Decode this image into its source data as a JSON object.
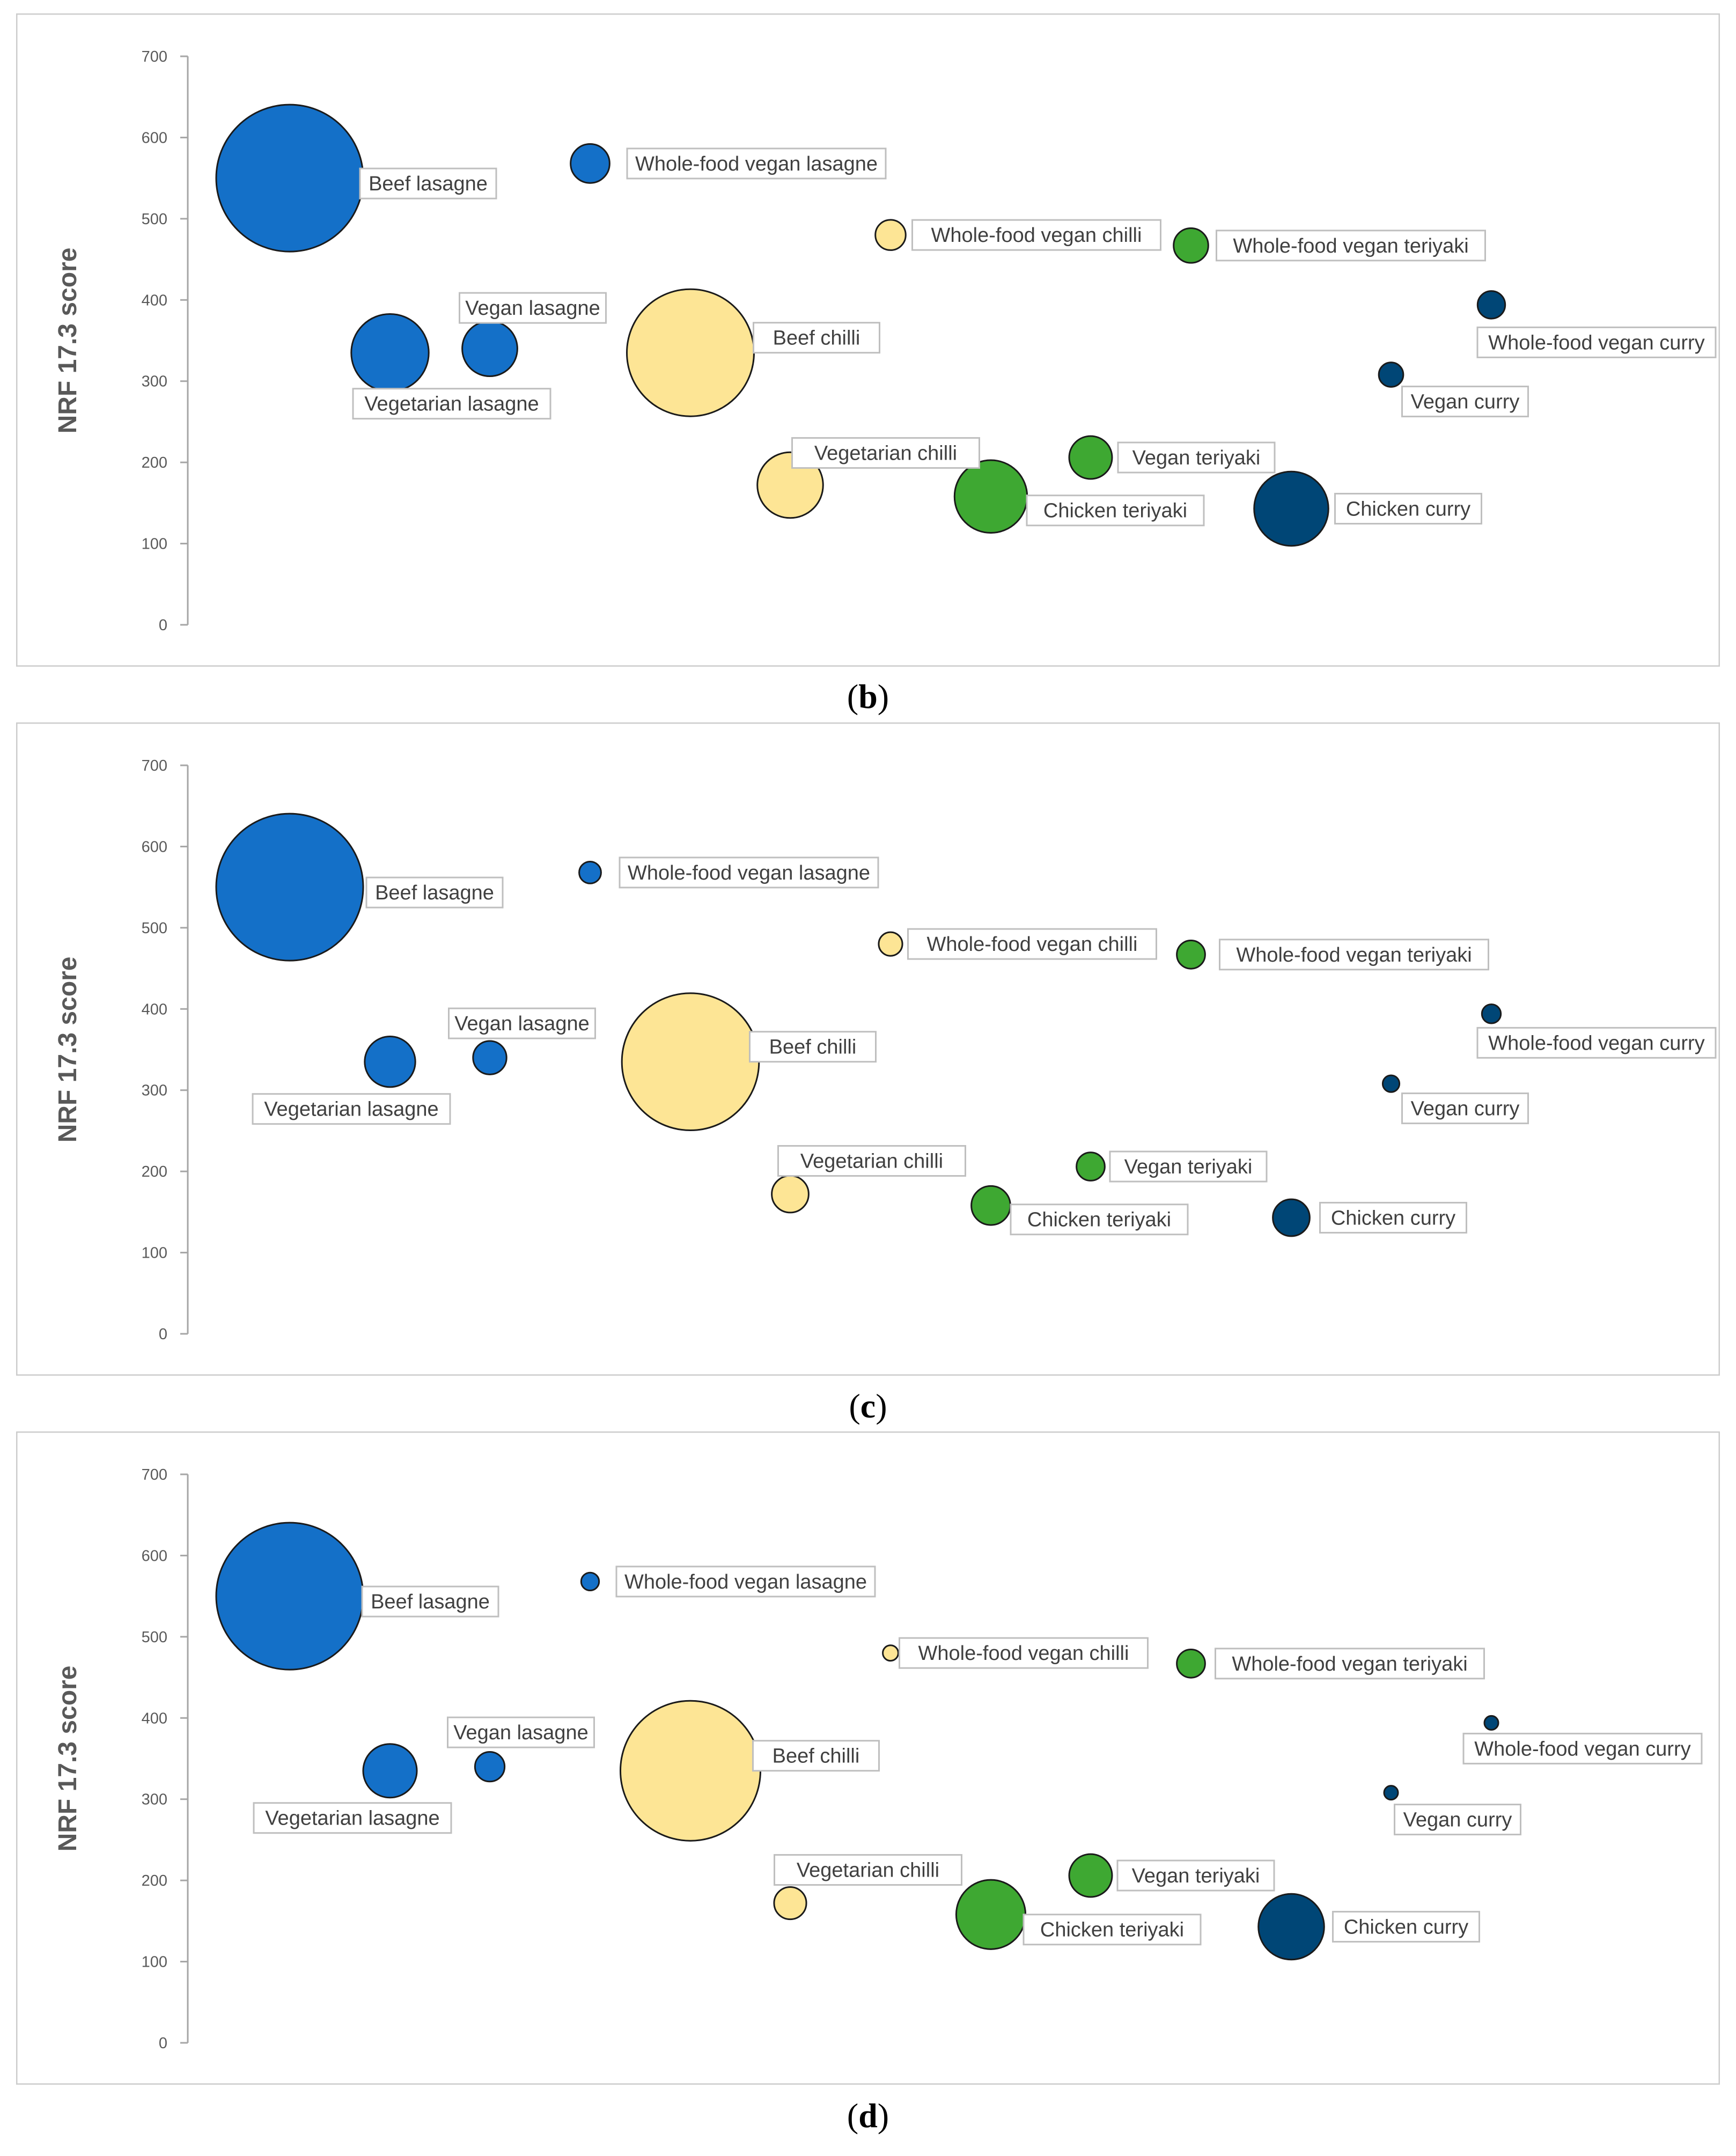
{
  "colors": {
    "lasagne": "#1470c8",
    "chilli": "#fde595",
    "teriyaki": "#3ea832",
    "curry": "#004676",
    "frame": "#cccccc",
    "axis": "#a6a6a6",
    "label_text": "#404040",
    "label_border": "#bfbfbf"
  },
  "chart_data": [
    {
      "type": "scatter",
      "subtype": "bubble",
      "panel": "b",
      "caption": "b",
      "ylabel": "NRF 17.3 score",
      "xlabel": "",
      "ylim": [
        0,
        700
      ],
      "yticks": [
        "0",
        "100",
        "200",
        "300",
        "400",
        "500",
        "600",
        "700"
      ],
      "series": [
        {
          "name": "Beef lasagne",
          "group": "lasagne",
          "x": 1.0,
          "y": 550,
          "size": 27
        },
        {
          "name": "Vegetarian lasagne",
          "group": "lasagne",
          "x": 2.0,
          "y": 335,
          "size": 7.5
        },
        {
          "name": "Vegan lasagne",
          "group": "lasagne",
          "x": 3.0,
          "y": 340,
          "size": 3.8
        },
        {
          "name": "Whole-food vegan lasagne",
          "group": "lasagne",
          "x": 4.0,
          "y": 568,
          "size": 1.9
        },
        {
          "name": "Beef chilli",
          "group": "chilli",
          "x": 5.0,
          "y": 335,
          "size": 20.2
        },
        {
          "name": "Vegetarian chilli",
          "group": "chilli",
          "x": 6.0,
          "y": 172,
          "size": 5.4
        },
        {
          "name": "Whole-food vegan chilli",
          "group": "chilli",
          "x": 7.0,
          "y": 480,
          "size": 1.15
        },
        {
          "name": "Chicken teriyaki",
          "group": "teriyaki",
          "x": 8.0,
          "y": 158,
          "size": 6.6
        },
        {
          "name": "Vegan teriyaki",
          "group": "teriyaki",
          "x": 9.0,
          "y": 206,
          "size": 2.3
        },
        {
          "name": "Whole-food vegan teriyaki",
          "group": "teriyaki",
          "x": 10.0,
          "y": 467,
          "size": 1.5
        },
        {
          "name": "Chicken curry",
          "group": "curry",
          "x": 11.0,
          "y": 143,
          "size": 6.9
        },
        {
          "name": "Vegan curry",
          "group": "curry",
          "x": 12.0,
          "y": 308,
          "size": 0.75
        },
        {
          "name": "Whole-food vegan curry",
          "group": "curry",
          "x": 13.0,
          "y": 394,
          "size": 0.95
        }
      ]
    },
    {
      "type": "scatter",
      "subtype": "bubble",
      "panel": "c",
      "caption": "c",
      "ylabel": "NRF 17.3 score",
      "xlabel": "",
      "ylim": [
        0,
        700
      ],
      "yticks": [
        "0",
        "100",
        "200",
        "300",
        "400",
        "500",
        "600",
        "700"
      ],
      "series": [
        {
          "name": "Beef lasagne",
          "group": "lasagne",
          "x": 1.0,
          "y": 550,
          "size": 27
        },
        {
          "name": "Vegetarian lasagne",
          "group": "lasagne",
          "x": 2.0,
          "y": 335,
          "size": 3.2
        },
        {
          "name": "Vegan lasagne",
          "group": "lasagne",
          "x": 3.0,
          "y": 340,
          "size": 1.4
        },
        {
          "name": "Whole-food vegan lasagne",
          "group": "lasagne",
          "x": 4.0,
          "y": 568,
          "size": 0.6
        },
        {
          "name": "Beef chilli",
          "group": "chilli",
          "x": 5.0,
          "y": 335,
          "size": 23.5
        },
        {
          "name": "Vegetarian chilli",
          "group": "chilli",
          "x": 6.0,
          "y": 172,
          "size": 1.7
        },
        {
          "name": "Whole-food vegan chilli",
          "group": "chilli",
          "x": 7.0,
          "y": 480,
          "size": 0.7
        },
        {
          "name": "Chicken teriyaki",
          "group": "teriyaki",
          "x": 8.0,
          "y": 158,
          "size": 1.9
        },
        {
          "name": "Vegan teriyaki",
          "group": "teriyaki",
          "x": 9.0,
          "y": 206,
          "size": 1.0
        },
        {
          "name": "Whole-food vegan teriyaki",
          "group": "teriyaki",
          "x": 10.0,
          "y": 467,
          "size": 1.0
        },
        {
          "name": "Chicken curry",
          "group": "curry",
          "x": 11.0,
          "y": 143,
          "size": 1.7
        },
        {
          "name": "Vegan curry",
          "group": "curry",
          "x": 12.0,
          "y": 308,
          "size": 0.35
        },
        {
          "name": "Whole-food vegan curry",
          "group": "curry",
          "x": 13.0,
          "y": 394,
          "size": 0.45
        }
      ]
    },
    {
      "type": "scatter",
      "subtype": "bubble",
      "panel": "d",
      "caption": "d",
      "ylabel": "NRF 17.3 score",
      "xlabel": "",
      "ylim": [
        0,
        700
      ],
      "yticks": [
        "0",
        "100",
        "200",
        "300",
        "400",
        "500",
        "600",
        "700"
      ],
      "series": [
        {
          "name": "Beef lasagne",
          "group": "lasagne",
          "x": 1.0,
          "y": 550,
          "size": 27
        },
        {
          "name": "Vegetarian lasagne",
          "group": "lasagne",
          "x": 2.0,
          "y": 335,
          "size": 3.6
        },
        {
          "name": "Vegan lasagne",
          "group": "lasagne",
          "x": 3.0,
          "y": 340,
          "size": 1.1
        },
        {
          "name": "Whole-food vegan lasagne",
          "group": "lasagne",
          "x": 4.0,
          "y": 568,
          "size": 0.4
        },
        {
          "name": "Beef chilli",
          "group": "chilli",
          "x": 5.0,
          "y": 335,
          "size": 24.5
        },
        {
          "name": "Vegetarian chilli",
          "group": "chilli",
          "x": 6.0,
          "y": 172,
          "size": 1.3
        },
        {
          "name": "Whole-food vegan chilli",
          "group": "chilli",
          "x": 7.0,
          "y": 480,
          "size": 0.3
        },
        {
          "name": "Chicken teriyaki",
          "group": "teriyaki",
          "x": 8.0,
          "y": 158,
          "size": 6.0
        },
        {
          "name": "Vegan teriyaki",
          "group": "teriyaki",
          "x": 9.0,
          "y": 206,
          "size": 2.3
        },
        {
          "name": "Whole-food vegan teriyaki",
          "group": "teriyaki",
          "x": 10.0,
          "y": 467,
          "size": 1.0
        },
        {
          "name": "Chicken curry",
          "group": "curry",
          "x": 11.0,
          "y": 143,
          "size": 5.4
        },
        {
          "name": "Vegan curry",
          "group": "curry",
          "x": 12.0,
          "y": 308,
          "size": 0.2
        },
        {
          "name": "Whole-food vegan curry",
          "group": "curry",
          "x": 13.0,
          "y": 394,
          "size": 0.2
        }
      ]
    }
  ]
}
